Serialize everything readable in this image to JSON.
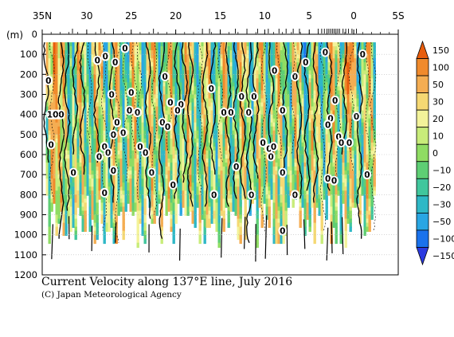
{
  "chart_data": {
    "type": "heatmap",
    "title": "Current Velocity along 137°E line, July 2016",
    "credit": "(C) Japan Meteorological Agency",
    "x_axis": {
      "ticks": [
        "35N",
        "30",
        "25",
        "20",
        "15",
        "10",
        "5",
        "0",
        "5S"
      ],
      "tick_values": [
        35,
        30,
        25,
        20,
        15,
        10,
        5,
        0,
        -5
      ],
      "range": [
        35,
        -5
      ]
    },
    "y_axis": {
      "unit_label": "(m)",
      "ticks": [
        "0",
        "100",
        "200",
        "300",
        "400",
        "500",
        "600",
        "700",
        "800",
        "900",
        "1000",
        "1100",
        "1200"
      ],
      "tick_values": [
        0,
        100,
        200,
        300,
        400,
        500,
        600,
        700,
        800,
        900,
        1000,
        1100,
        1200
      ],
      "range": [
        0,
        1200
      ],
      "inverted": true
    },
    "colorbar": {
      "levels": [
        150,
        100,
        50,
        30,
        20,
        10,
        0,
        -10,
        -20,
        -30,
        -50,
        -100,
        -150
      ],
      "labels": [
        "150",
        "100",
        "50",
        "30",
        "20",
        "10",
        "0",
        "−10",
        "−20",
        "−30",
        "−50",
        "−100",
        "−150"
      ],
      "colors": [
        "#e85d0c",
        "#f08a2c",
        "#f4ad52",
        "#f5d873",
        "#f3f39a",
        "#c8ec7a",
        "#8fdc63",
        "#5ece74",
        "#41c69d",
        "#2fb8c6",
        "#29a6e3",
        "#1a72ec",
        "#2b3ae0"
      ]
    },
    "contour_labels": [
      {
        "text": "0",
        "lat": 34.3,
        "depth": 230
      },
      {
        "text": "100",
        "lat": 33.5,
        "depth": 400
      },
      {
        "text": "0",
        "lat": 34.0,
        "depth": 550
      },
      {
        "text": "0",
        "lat": 31.5,
        "depth": 690
      },
      {
        "text": "0",
        "lat": 28.8,
        "depth": 130
      },
      {
        "text": "0",
        "lat": 27.9,
        "depth": 110
      },
      {
        "text": "0",
        "lat": 26.8,
        "depth": 140
      },
      {
        "text": "0",
        "lat": 25.7,
        "depth": 70
      },
      {
        "text": "0",
        "lat": 27.2,
        "depth": 300
      },
      {
        "text": "0",
        "lat": 25.0,
        "depth": 290
      },
      {
        "text": "0",
        "lat": 25.2,
        "depth": 380
      },
      {
        "text": "0",
        "lat": 24.3,
        "depth": 390
      },
      {
        "text": "0",
        "lat": 26.6,
        "depth": 440
      },
      {
        "text": "0",
        "lat": 27.0,
        "depth": 500
      },
      {
        "text": "0",
        "lat": 25.9,
        "depth": 490
      },
      {
        "text": "0",
        "lat": 28.0,
        "depth": 560
      },
      {
        "text": "0",
        "lat": 28.6,
        "depth": 610
      },
      {
        "text": "0",
        "lat": 27.6,
        "depth": 590
      },
      {
        "text": "0",
        "lat": 27.0,
        "depth": 680
      },
      {
        "text": "0",
        "lat": 24.0,
        "depth": 560
      },
      {
        "text": "0",
        "lat": 23.4,
        "depth": 590
      },
      {
        "text": "0",
        "lat": 22.7,
        "depth": 690
      },
      {
        "text": "0",
        "lat": 21.2,
        "depth": 210
      },
      {
        "text": "0",
        "lat": 20.6,
        "depth": 340
      },
      {
        "text": "0",
        "lat": 19.4,
        "depth": 350
      },
      {
        "text": "0",
        "lat": 19.8,
        "depth": 380
      },
      {
        "text": "0",
        "lat": 21.5,
        "depth": 440
      },
      {
        "text": "0",
        "lat": 20.9,
        "depth": 460
      },
      {
        "text": "0",
        "lat": 20.3,
        "depth": 750
      },
      {
        "text": "0",
        "lat": 28.0,
        "depth": 790
      },
      {
        "text": "0",
        "lat": 16.0,
        "depth": 270
      },
      {
        "text": "0",
        "lat": 14.6,
        "depth": 390
      },
      {
        "text": "0",
        "lat": 13.8,
        "depth": 390
      },
      {
        "text": "0",
        "lat": 12.6,
        "depth": 310
      },
      {
        "text": "0",
        "lat": 11.8,
        "depth": 390
      },
      {
        "text": "0",
        "lat": 11.2,
        "depth": 310
      },
      {
        "text": "0",
        "lat": 13.2,
        "depth": 660
      },
      {
        "text": "0",
        "lat": 10.2,
        "depth": 540
      },
      {
        "text": "0",
        "lat": 9.5,
        "depth": 570
      },
      {
        "text": "0",
        "lat": 9.0,
        "depth": 560
      },
      {
        "text": "0",
        "lat": 9.3,
        "depth": 610
      },
      {
        "text": "0",
        "lat": 8.9,
        "depth": 180
      },
      {
        "text": "0",
        "lat": 8.0,
        "depth": 380
      },
      {
        "text": "0",
        "lat": 8.0,
        "depth": 690
      },
      {
        "text": "0",
        "lat": 6.6,
        "depth": 210
      },
      {
        "text": "0",
        "lat": 5.4,
        "depth": 140
      },
      {
        "text": "0",
        "lat": 3.2,
        "depth": 90
      },
      {
        "text": "0",
        "lat": 11.5,
        "depth": 800
      },
      {
        "text": "0",
        "lat": 6.6,
        "depth": 800
      },
      {
        "text": "0",
        "lat": 8.0,
        "depth": 980
      },
      {
        "text": "0",
        "lat": 15.7,
        "depth": 800
      },
      {
        "text": "0",
        "lat": 2.1,
        "depth": 330
      },
      {
        "text": "0",
        "lat": 2.6,
        "depth": 420
      },
      {
        "text": "0",
        "lat": 2.9,
        "depth": 450
      },
      {
        "text": "0",
        "lat": 1.7,
        "depth": 510
      },
      {
        "text": "0",
        "lat": 1.4,
        "depth": 540
      },
      {
        "text": "0",
        "lat": -0.3,
        "depth": 410
      },
      {
        "text": "0",
        "lat": -1.0,
        "depth": 100
      },
      {
        "text": "0",
        "lat": 0.5,
        "depth": 540
      },
      {
        "text": "0",
        "lat": 2.9,
        "depth": 720
      },
      {
        "text": "0",
        "lat": 2.2,
        "depth": 730
      },
      {
        "text": "0",
        "lat": -1.5,
        "depth": 700
      }
    ]
  }
}
